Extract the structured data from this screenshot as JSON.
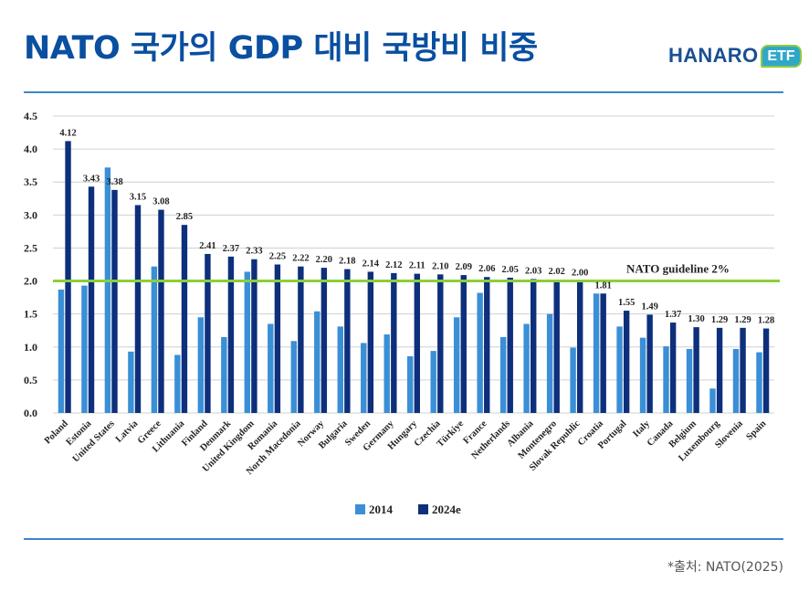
{
  "header": {
    "title": "NATO 국가의 GDP 대비 국방비 비중",
    "logo_text": "HANARO",
    "logo_badge": "ETF"
  },
  "footer": {
    "source": "*출처: NATO(2025)"
  },
  "colors": {
    "series_2014": "#3a8fd6",
    "series_2024": "#0d2f7c",
    "guideline": "#8ccf3a",
    "title": "#0a4fa0"
  },
  "chart_data": {
    "type": "bar",
    "categories": [
      "Poland",
      "Estonia",
      "United States",
      "Latvia",
      "Greece",
      "Lithuania",
      "Finland",
      "Denmark",
      "United Kingdom",
      "Romania",
      "North Macedonia",
      "Norway",
      "Bulgaria",
      "Sweden",
      "Germany",
      "Hungary",
      "Czechia",
      "Türkiye",
      "France",
      "Netherlands",
      "Albania",
      "Montenegro",
      "Slovak Republic",
      "Croatia",
      "Portugal",
      "Italy",
      "Canada",
      "Belgium",
      "Luxembourg",
      "Slovenia",
      "Spain"
    ],
    "series": [
      {
        "name": "2014",
        "values": [
          1.87,
          1.93,
          3.72,
          0.93,
          2.22,
          0.88,
          1.45,
          1.15,
          2.14,
          1.35,
          1.09,
          1.54,
          1.31,
          1.06,
          1.19,
          0.86,
          0.94,
          1.45,
          1.82,
          1.15,
          1.35,
          1.5,
          0.99,
          1.81,
          1.31,
          1.14,
          1.01,
          0.97,
          0.37,
          0.97,
          0.92
        ]
      },
      {
        "name": "2024e",
        "values": [
          4.12,
          3.43,
          3.38,
          3.15,
          3.08,
          2.85,
          2.41,
          2.37,
          2.33,
          2.25,
          2.22,
          2.2,
          2.18,
          2.14,
          2.12,
          2.11,
          2.1,
          2.09,
          2.06,
          2.05,
          2.03,
          2.02,
          2.0,
          1.81,
          1.55,
          1.49,
          1.37,
          1.3,
          1.29,
          1.29,
          1.28
        ]
      }
    ],
    "data_labels": [
      "4.12",
      "3.43",
      "3.38",
      "3.15",
      "3.08",
      "2.85",
      "2.41",
      "2.37",
      "2.33",
      "2.25",
      "2.22",
      "2.20",
      "2.18",
      "2.14",
      "2.12",
      "2.11",
      "2.10",
      "2.09",
      "2.06",
      "2.05",
      "2.03",
      "2.02",
      "2.00",
      "1.81",
      "1.55",
      "1.49",
      "1.37",
      "1.30",
      "1.29",
      "1.29",
      "1.28"
    ],
    "yticks": [
      "0.0",
      "0.5",
      "1.0",
      "1.5",
      "2.0",
      "2.5",
      "3.0",
      "3.5",
      "4.0",
      "4.5"
    ],
    "ylim": [
      0,
      4.5
    ],
    "guideline": {
      "value": 2.0,
      "label": "NATO guideline 2%"
    },
    "legend": {
      "placement": "bottom-center"
    },
    "grid": true
  }
}
